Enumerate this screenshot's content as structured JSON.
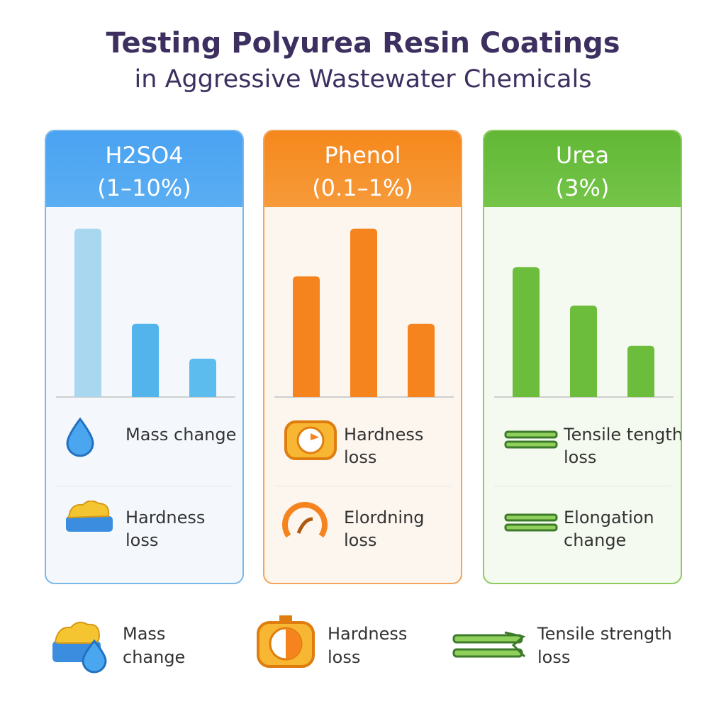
{
  "title": "Testing Polyurea Resin Coatings",
  "subtitle": "in Aggressive Wastewater Chemicals",
  "chart_data": [
    {
      "type": "bar",
      "title": "H2SO4",
      "subtitle": "(1–10%)",
      "categories": [
        null,
        null,
        null
      ],
      "values": [
        92,
        40,
        21
      ],
      "colors": [
        "#a9d7f0",
        "#52b4ea",
        "#5cbcee"
      ],
      "ylim": [
        0,
        100
      ],
      "items": [
        "Mass change",
        "Hardness loss"
      ]
    },
    {
      "type": "bar",
      "title": "Phenol",
      "subtitle": "(0.1–1%)",
      "categories": [
        null,
        null,
        null
      ],
      "values": [
        66,
        92,
        40
      ],
      "colors": [
        "#f5841f",
        "#f5841f",
        "#f5841f"
      ],
      "ylim": [
        0,
        100
      ],
      "items": [
        "Hardness loss",
        "Elordning loss"
      ]
    },
    {
      "type": "bar",
      "title": "Urea",
      "subtitle": "(3%)",
      "categories": [
        null,
        null,
        null
      ],
      "values": [
        71,
        50,
        28
      ],
      "colors": [
        "#6cbd3c",
        "#6cbd3c",
        "#6cbd3c"
      ],
      "ylim": [
        0,
        100
      ],
      "items": [
        "Tensile tength loss",
        "Elongation change"
      ]
    }
  ],
  "legend": [
    "Mass change",
    "Hardness loss",
    "Tensile strength loss"
  ]
}
